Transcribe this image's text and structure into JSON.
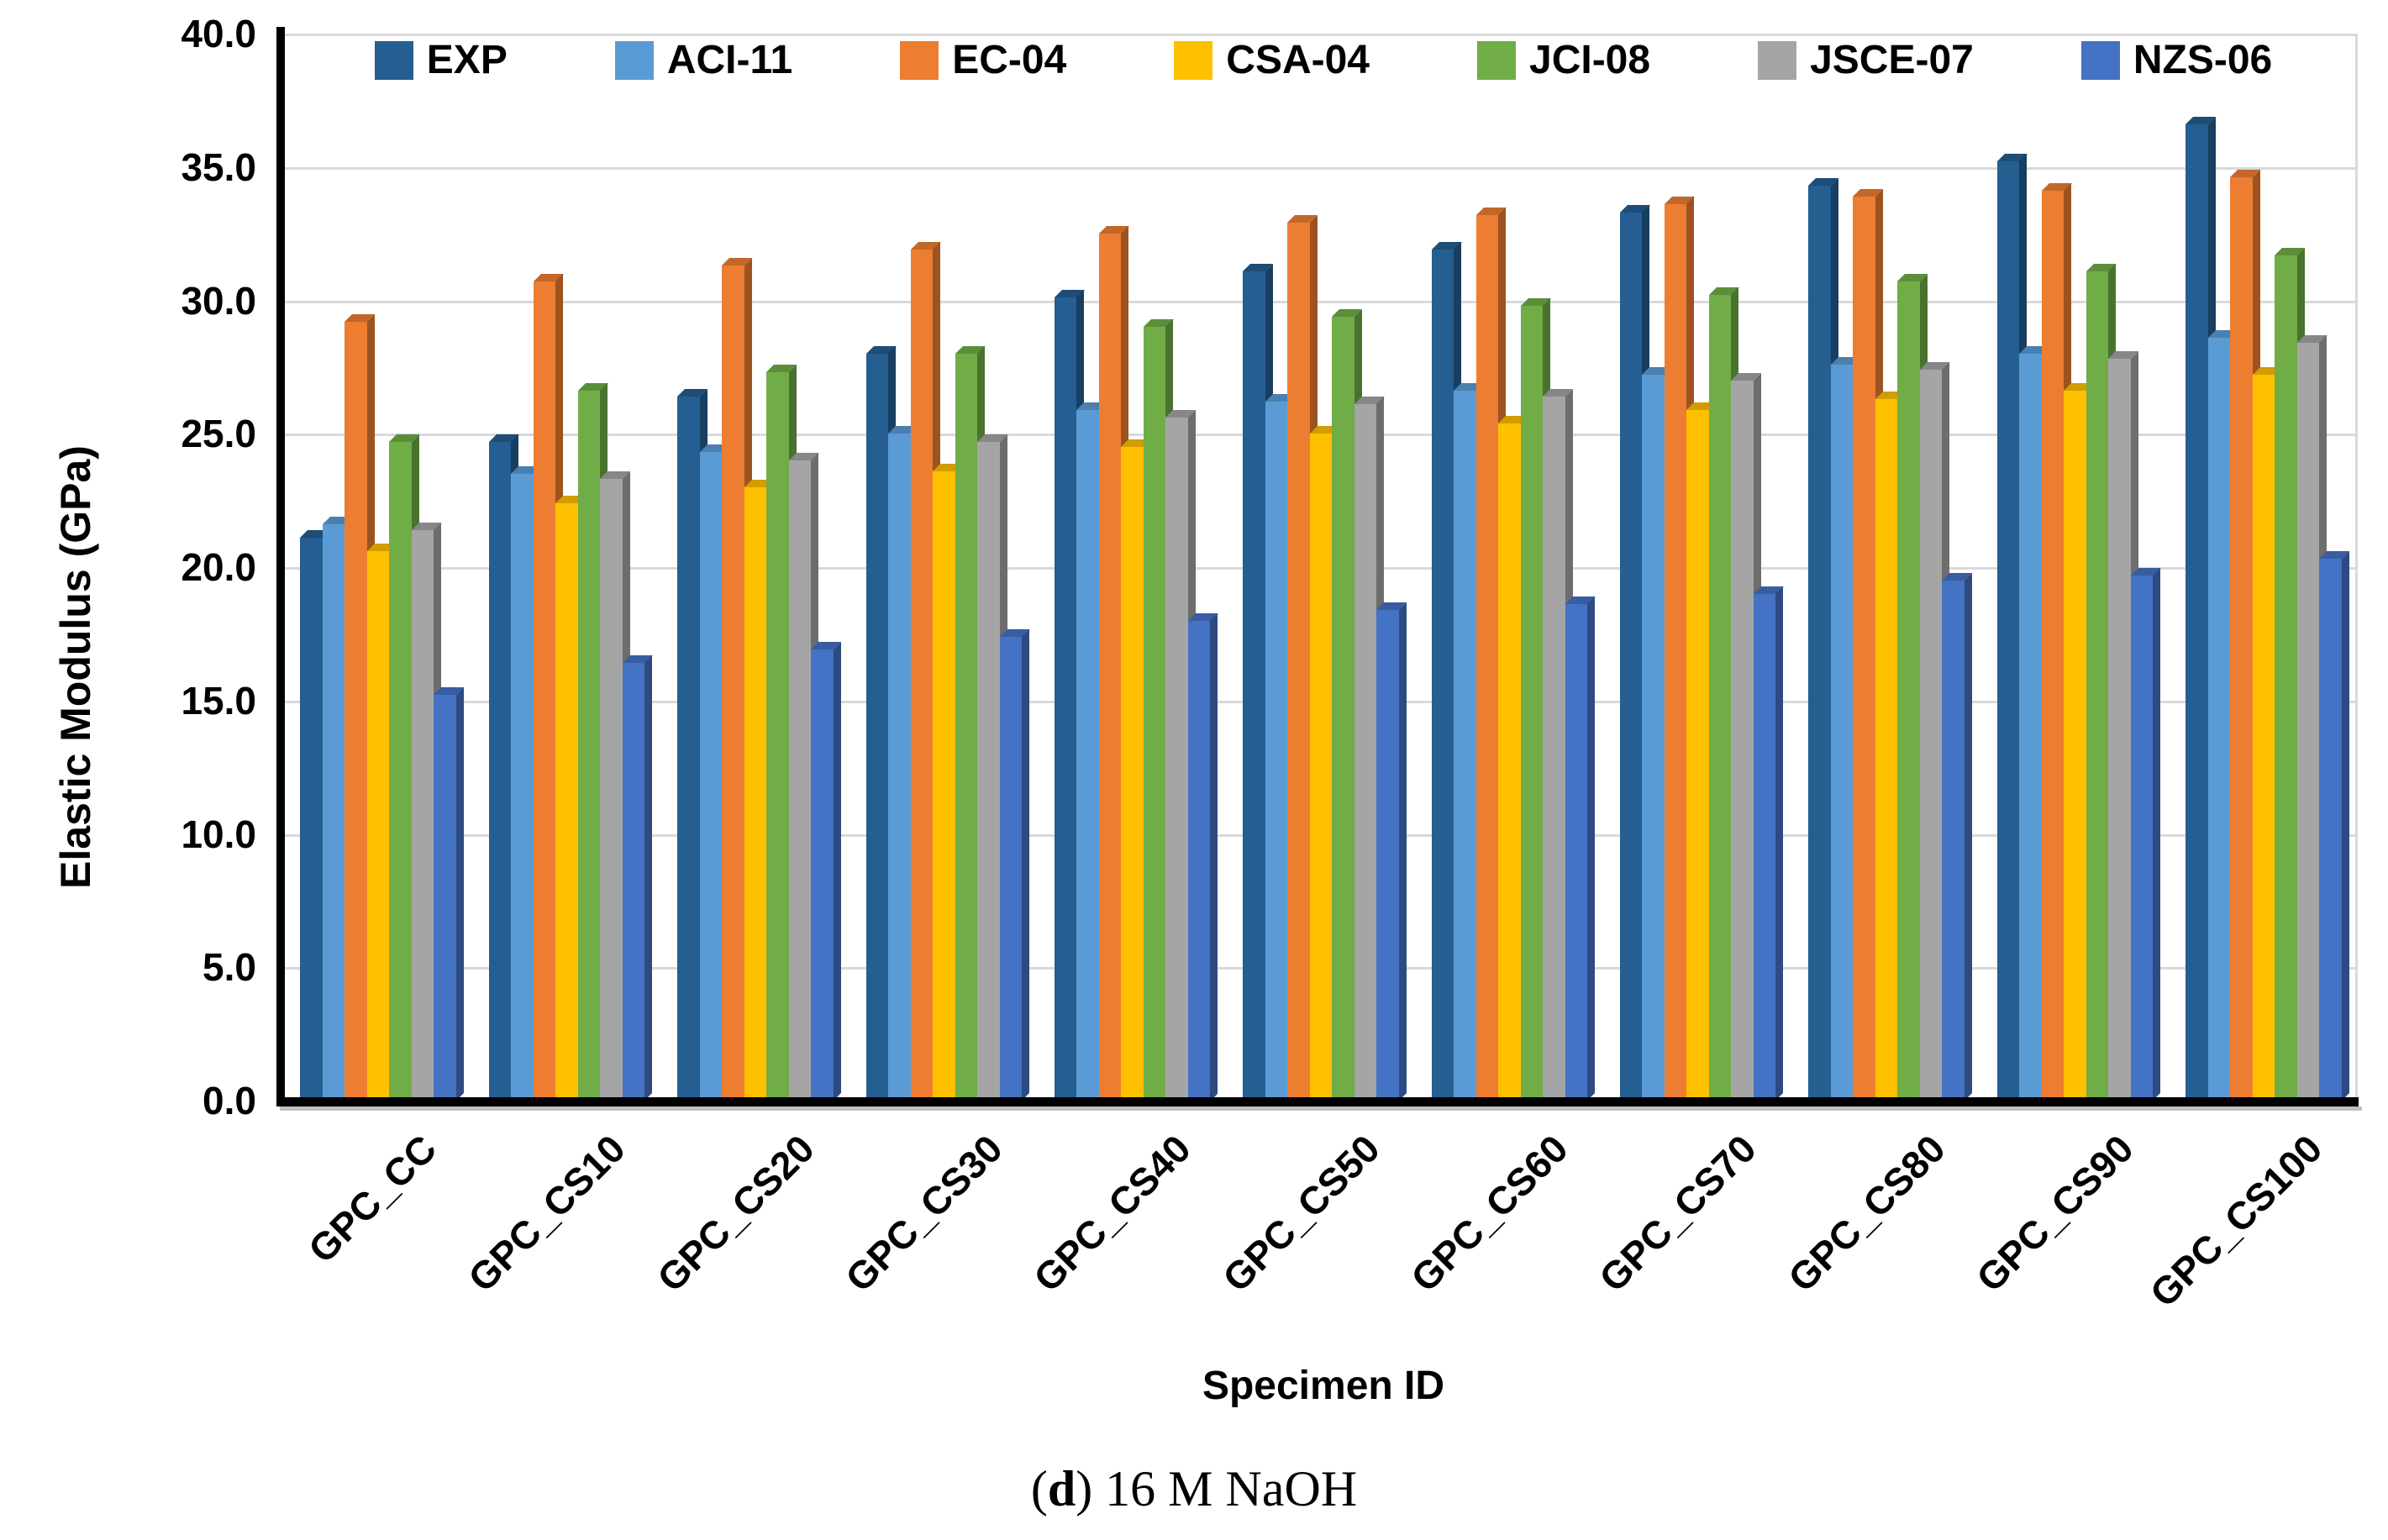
{
  "figure": {
    "y_axis_title": "Elastic Modulus (GPa)",
    "x_axis_title": "Specimen ID",
    "caption": {
      "prefix": "(",
      "letter": "d",
      "suffix": ") 16 M NaOH"
    }
  },
  "chart_data": {
    "type": "bar",
    "title": "",
    "xlabel": "Specimen ID",
    "ylabel": "Elastic Modulus (GPa)",
    "ylim": [
      0,
      40
    ],
    "ytick_step": 5,
    "ytick_decimals": 1,
    "grid": true,
    "legend_position": "top",
    "categories": [
      "GPC_CC",
      "GPC_CS10",
      "GPC_CS20",
      "GPC_CS30",
      "GPC_CS40",
      "GPC_CS50",
      "GPC_CS60",
      "GPC_CS70",
      "GPC_CS80",
      "GPC_CS90",
      "GPC_CS100"
    ],
    "series": [
      {
        "name": "EXP",
        "color": "#255E91",
        "values": [
          21.1,
          24.7,
          26.4,
          28.0,
          30.1,
          31.1,
          31.9,
          33.3,
          34.3,
          35.2,
          36.6
        ]
      },
      {
        "name": "ACI-11",
        "color": "#5B9BD5",
        "values": [
          21.6,
          23.5,
          24.3,
          25.0,
          25.9,
          26.2,
          26.6,
          27.2,
          27.6,
          28.0,
          28.6
        ]
      },
      {
        "name": "EC-04",
        "color": "#ED7D31",
        "values": [
          29.2,
          30.7,
          31.3,
          31.9,
          32.5,
          32.9,
          33.2,
          33.6,
          33.9,
          34.1,
          34.6
        ]
      },
      {
        "name": "CSA-04",
        "color": "#FFC000",
        "values": [
          20.6,
          22.4,
          23.0,
          23.6,
          24.5,
          25.0,
          25.4,
          25.9,
          26.3,
          26.6,
          27.2
        ]
      },
      {
        "name": "JCI-08",
        "color": "#70AD47",
        "values": [
          24.7,
          26.6,
          27.3,
          28.0,
          29.0,
          29.4,
          29.8,
          30.2,
          30.7,
          31.1,
          31.7
        ]
      },
      {
        "name": "JSCE-07",
        "color": "#A5A5A5",
        "values": [
          21.4,
          23.3,
          24.0,
          24.7,
          25.6,
          26.1,
          26.4,
          27.0,
          27.4,
          27.8,
          28.4
        ]
      },
      {
        "name": "NZS-06",
        "color": "#4472C4",
        "values": [
          15.2,
          16.4,
          16.9,
          17.4,
          18.0,
          18.4,
          18.6,
          19.0,
          19.5,
          19.7,
          20.3
        ]
      }
    ]
  }
}
